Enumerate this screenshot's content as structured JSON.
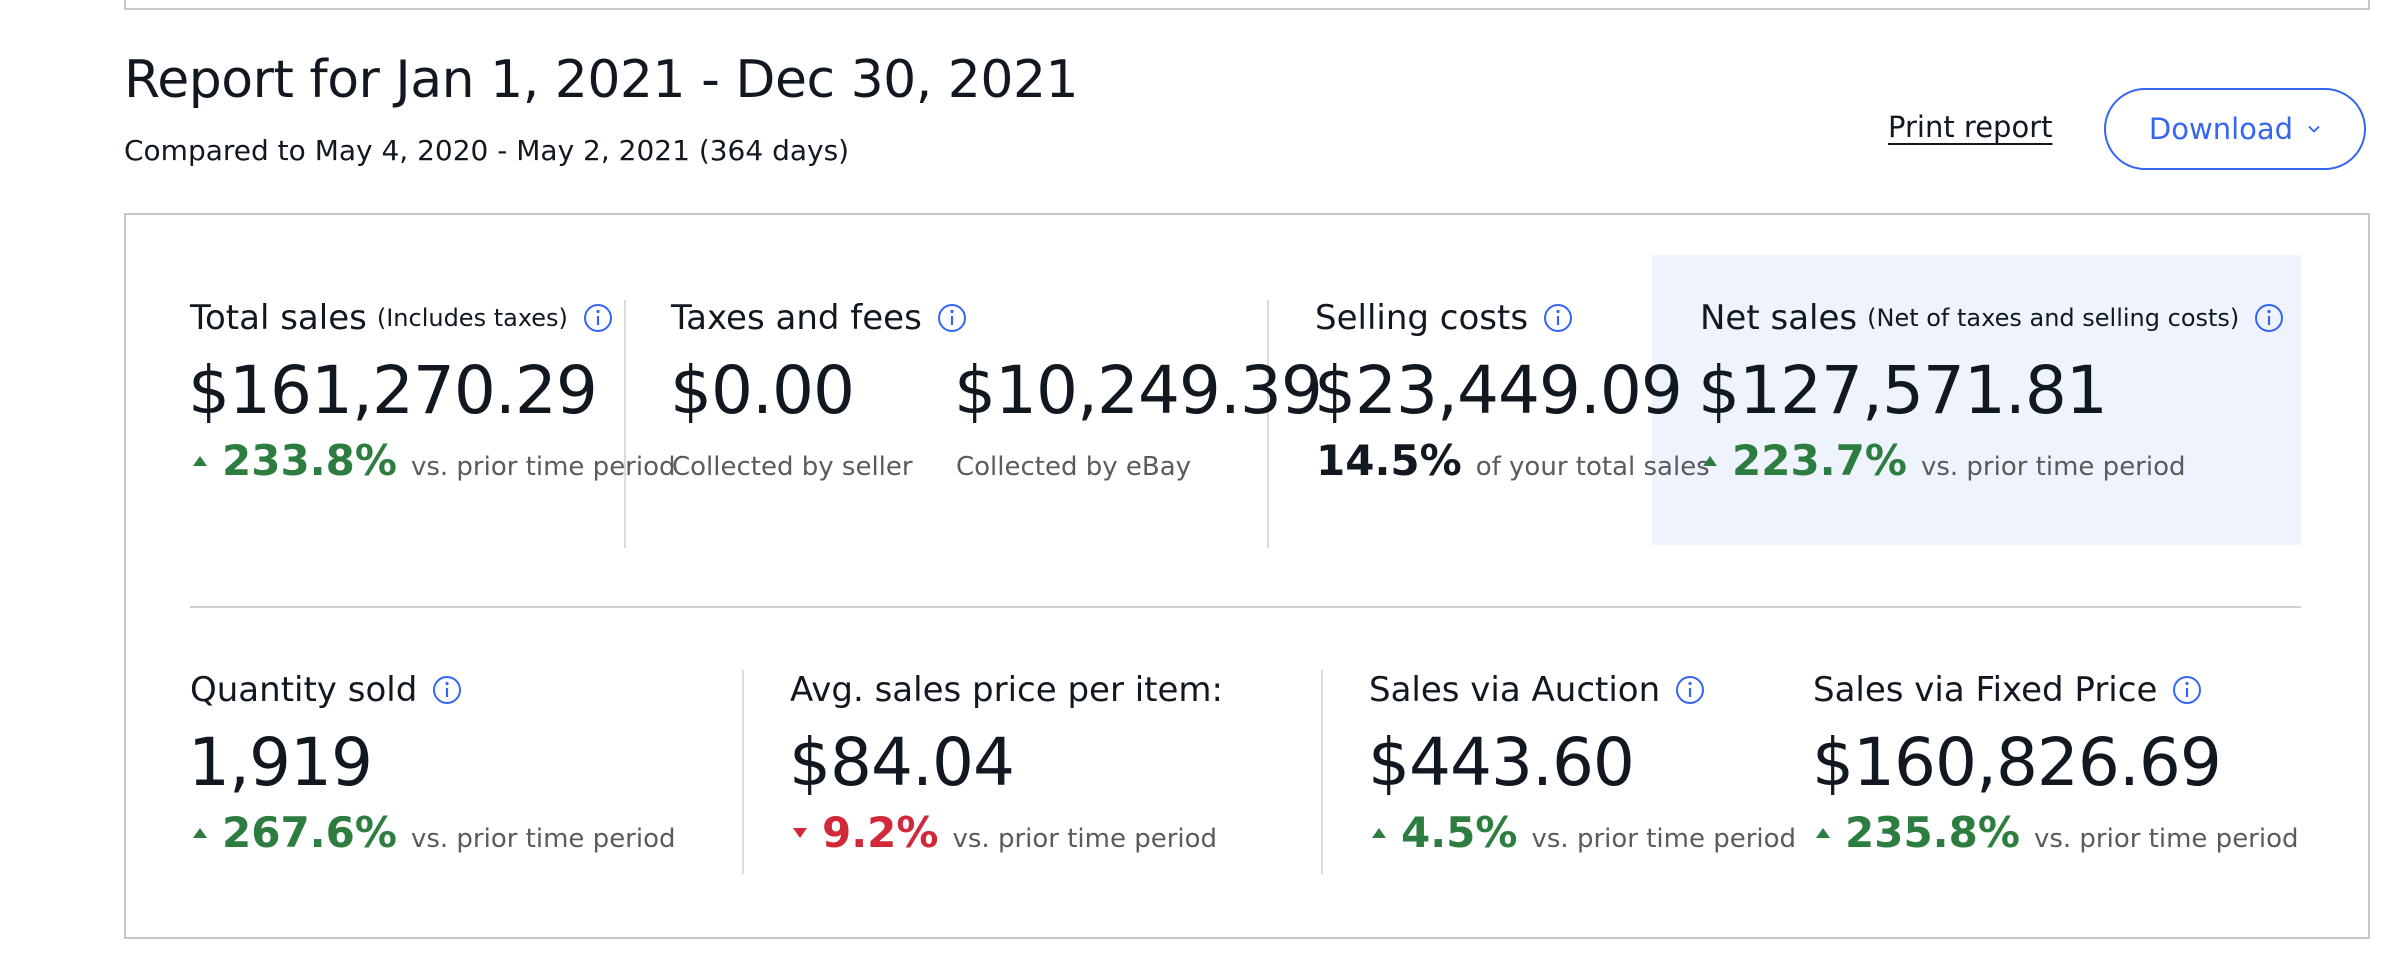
{
  "report": {
    "title": "Report for Jan 1, 2021 - Dec 30, 2021",
    "comparison": "Compared to May 4, 2020 - May 2, 2021 (364 days)"
  },
  "actions": {
    "print_label": "Print report",
    "download_label": "Download"
  },
  "colors": {
    "accent": "#3665f3",
    "positive": "#2e7d40",
    "negative": "#d1283a",
    "highlight_bg": "#eef3fd"
  },
  "icons": {
    "info": "info-icon",
    "up": "triangle-up-icon",
    "down": "triangle-down-icon",
    "dropdown": "chevron-down-icon"
  },
  "top_metrics": {
    "total_sales": {
      "label": "Total sales",
      "qualifier": "(Includes taxes)",
      "value": "$161,270.29",
      "change": "233.8%",
      "change_direction": "up",
      "change_text": "vs. prior time period"
    },
    "taxes_fees": {
      "label": "Taxes and fees",
      "seller_value": "$0.00",
      "seller_caption": "Collected by seller",
      "ebay_value": "$10,249.39",
      "ebay_caption": "Collected by eBay"
    },
    "selling_costs": {
      "label": "Selling costs",
      "value": "$23,449.09",
      "share": "14.5%",
      "share_text": "of your total sales"
    },
    "net_sales": {
      "label": "Net sales",
      "qualifier": "(Net of taxes and selling costs)",
      "value": "$127,571.81",
      "change": "223.7%",
      "change_direction": "up",
      "change_text": "vs. prior time period"
    }
  },
  "bottom_metrics": {
    "quantity_sold": {
      "label": "Quantity sold",
      "value": "1,919",
      "change": "267.6%",
      "change_direction": "up",
      "change_text": "vs. prior time period"
    },
    "avg_price": {
      "label": "Avg. sales price per item:",
      "value": "$84.04",
      "change": "9.2%",
      "change_direction": "down",
      "change_text": "vs. prior time period"
    },
    "auction": {
      "label": "Sales via Auction",
      "value": "$443.60",
      "change": "4.5%",
      "change_direction": "up",
      "change_text": "vs. prior time period"
    },
    "fixed_price": {
      "label": "Sales via Fixed Price",
      "value": "$160,826.69",
      "change": "235.8%",
      "change_direction": "up",
      "change_text": "vs. prior time period"
    }
  }
}
